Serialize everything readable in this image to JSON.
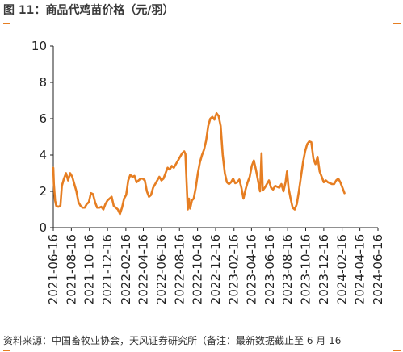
{
  "header": {
    "title": "图 11：商品代鸡苗价格（元/羽）"
  },
  "footer": {
    "source": "资料来源：中国畜牧业协会，天风证券研究所（备注：最新数据截止至 6 月 16"
  },
  "colors": {
    "line": "#e67e22",
    "accent": "#e67e22",
    "axis": "#222222"
  },
  "chart_data": {
    "type": "line",
    "title": "",
    "xlabel": "",
    "ylabel": "",
    "ylim": [
      0,
      10
    ],
    "y_ticks": [
      "0",
      "2",
      "4",
      "6",
      "8",
      "10"
    ],
    "x_range": [
      "2021-06-16",
      "2024-06-16"
    ],
    "x_ticks": [
      "2021-06-16",
      "2021-08-16",
      "2021-10-16",
      "2021-12-16",
      "2022-02-16",
      "2022-04-16",
      "2022-06-16",
      "2022-08-16",
      "2022-10-16",
      "2022-12-16",
      "2023-02-16",
      "2023-04-16",
      "2023-06-16",
      "2023-08-16",
      "2023-10-16",
      "2023-12-16",
      "2024-02-16",
      "2024-04-16",
      "2024-06-16"
    ],
    "grid": false,
    "series": [
      {
        "name": "",
        "points": [
          [
            "2021-06-16",
            3.3
          ],
          [
            "2021-06-18",
            2.4
          ],
          [
            "2021-06-22",
            1.5
          ],
          [
            "2021-06-26",
            1.2
          ],
          [
            "2021-07-03",
            1.15
          ],
          [
            "2021-07-10",
            1.2
          ],
          [
            "2021-07-15",
            2.3
          ],
          [
            "2021-07-22",
            2.7
          ],
          [
            "2021-07-29",
            3.0
          ],
          [
            "2021-08-05",
            2.6
          ],
          [
            "2021-08-12",
            3.0
          ],
          [
            "2021-08-19",
            2.8
          ],
          [
            "2021-08-26",
            2.4
          ],
          [
            "2021-09-02",
            2.0
          ],
          [
            "2021-09-09",
            1.4
          ],
          [
            "2021-09-16",
            1.2
          ],
          [
            "2021-09-23",
            1.1
          ],
          [
            "2021-09-30",
            1.1
          ],
          [
            "2021-10-07",
            1.3
          ],
          [
            "2021-10-14",
            1.4
          ],
          [
            "2021-10-21",
            1.9
          ],
          [
            "2021-10-28",
            1.85
          ],
          [
            "2021-11-04",
            1.4
          ],
          [
            "2021-11-11",
            1.1
          ],
          [
            "2021-11-18",
            1.1
          ],
          [
            "2021-11-25",
            1.15
          ],
          [
            "2021-12-02",
            1.0
          ],
          [
            "2021-12-09",
            1.3
          ],
          [
            "2021-12-16",
            1.5
          ],
          [
            "2021-12-23",
            1.6
          ],
          [
            "2021-12-30",
            1.7
          ],
          [
            "2022-01-06",
            1.2
          ],
          [
            "2022-01-13",
            1.1
          ],
          [
            "2022-01-20",
            1.0
          ],
          [
            "2022-01-27",
            0.75
          ],
          [
            "2022-02-03",
            1.1
          ],
          [
            "2022-02-10",
            1.6
          ],
          [
            "2022-02-17",
            1.8
          ],
          [
            "2022-02-24",
            2.6
          ],
          [
            "2022-03-03",
            2.9
          ],
          [
            "2022-03-10",
            2.8
          ],
          [
            "2022-03-17",
            2.85
          ],
          [
            "2022-03-24",
            2.5
          ],
          [
            "2022-03-31",
            2.6
          ],
          [
            "2022-04-07",
            2.7
          ],
          [
            "2022-04-14",
            2.7
          ],
          [
            "2022-04-21",
            2.6
          ],
          [
            "2022-04-28",
            2.0
          ],
          [
            "2022-05-05",
            1.7
          ],
          [
            "2022-05-12",
            1.8
          ],
          [
            "2022-05-19",
            2.2
          ],
          [
            "2022-05-26",
            2.4
          ],
          [
            "2022-06-02",
            2.6
          ],
          [
            "2022-06-09",
            2.8
          ],
          [
            "2022-06-16",
            2.6
          ],
          [
            "2022-06-23",
            2.7
          ],
          [
            "2022-06-30",
            3.0
          ],
          [
            "2022-07-07",
            3.3
          ],
          [
            "2022-07-14",
            3.2
          ],
          [
            "2022-07-21",
            3.4
          ],
          [
            "2022-07-28",
            3.3
          ],
          [
            "2022-08-04",
            3.5
          ],
          [
            "2022-08-11",
            3.7
          ],
          [
            "2022-08-18",
            3.9
          ],
          [
            "2022-08-25",
            4.1
          ],
          [
            "2022-09-01",
            4.2
          ],
          [
            "2022-09-05",
            4.05
          ],
          [
            "2022-09-09",
            2.5
          ],
          [
            "2022-09-13",
            1.0
          ],
          [
            "2022-09-17",
            1.6
          ],
          [
            "2022-09-21",
            1.05
          ],
          [
            "2022-09-27",
            1.5
          ],
          [
            "2022-10-03",
            1.6
          ],
          [
            "2022-10-10",
            2.2
          ],
          [
            "2022-10-17",
            3.0
          ],
          [
            "2022-10-24",
            3.6
          ],
          [
            "2022-10-31",
            4.0
          ],
          [
            "2022-11-07",
            4.3
          ],
          [
            "2022-11-14",
            4.8
          ],
          [
            "2022-11-21",
            5.6
          ],
          [
            "2022-11-28",
            6.0
          ],
          [
            "2022-12-05",
            6.1
          ],
          [
            "2022-12-12",
            5.95
          ],
          [
            "2022-12-19",
            6.3
          ],
          [
            "2022-12-26",
            6.15
          ],
          [
            "2023-01-02",
            5.6
          ],
          [
            "2023-01-09",
            4.0
          ],
          [
            "2023-01-16",
            3.0
          ],
          [
            "2023-01-23",
            2.5
          ],
          [
            "2023-01-30",
            2.4
          ],
          [
            "2023-02-06",
            2.5
          ],
          [
            "2023-02-13",
            2.7
          ],
          [
            "2023-02-20",
            2.45
          ],
          [
            "2023-02-27",
            2.5
          ],
          [
            "2023-03-06",
            2.65
          ],
          [
            "2023-03-13",
            2.2
          ],
          [
            "2023-03-20",
            1.6
          ],
          [
            "2023-03-27",
            2.1
          ],
          [
            "2023-04-03",
            2.5
          ],
          [
            "2023-04-10",
            2.8
          ],
          [
            "2023-04-17",
            3.4
          ],
          [
            "2023-04-24",
            3.7
          ],
          [
            "2023-05-01",
            3.2
          ],
          [
            "2023-05-08",
            2.6
          ],
          [
            "2023-05-15",
            2.0
          ],
          [
            "2023-05-20",
            4.1
          ],
          [
            "2023-05-24",
            2.05
          ],
          [
            "2023-05-31",
            2.2
          ],
          [
            "2023-06-07",
            2.4
          ],
          [
            "2023-06-14",
            2.6
          ],
          [
            "2023-06-21",
            2.2
          ],
          [
            "2023-06-28",
            2.1
          ],
          [
            "2023-07-05",
            2.3
          ],
          [
            "2023-07-12",
            2.25
          ],
          [
            "2023-07-19",
            2.2
          ],
          [
            "2023-07-26",
            2.4
          ],
          [
            "2023-08-02",
            2.0
          ],
          [
            "2023-08-09",
            2.5
          ],
          [
            "2023-08-14",
            3.1
          ],
          [
            "2023-08-19",
            2.2
          ],
          [
            "2023-08-26",
            1.6
          ],
          [
            "2023-09-02",
            1.1
          ],
          [
            "2023-09-09",
            1.0
          ],
          [
            "2023-09-16",
            1.3
          ],
          [
            "2023-09-23",
            2.0
          ],
          [
            "2023-09-30",
            2.8
          ],
          [
            "2023-10-07",
            3.6
          ],
          [
            "2023-10-14",
            4.2
          ],
          [
            "2023-10-21",
            4.6
          ],
          [
            "2023-10-28",
            4.75
          ],
          [
            "2023-11-04",
            4.7
          ],
          [
            "2023-11-11",
            3.8
          ],
          [
            "2023-11-18",
            3.5
          ],
          [
            "2023-11-25",
            3.9
          ],
          [
            "2023-12-02",
            3.1
          ],
          [
            "2023-12-09",
            2.8
          ],
          [
            "2023-12-16",
            2.5
          ],
          [
            "2023-12-23",
            2.6
          ],
          [
            "2023-12-30",
            2.5
          ],
          [
            "2024-01-06",
            2.45
          ],
          [
            "2024-01-13",
            2.4
          ],
          [
            "2024-01-20",
            2.4
          ],
          [
            "2024-01-27",
            2.6
          ],
          [
            "2024-02-03",
            2.7
          ],
          [
            "2024-02-10",
            2.5
          ],
          [
            "2024-02-17",
            2.2
          ],
          [
            "2024-02-24",
            1.9
          ]
        ]
      }
    ]
  }
}
